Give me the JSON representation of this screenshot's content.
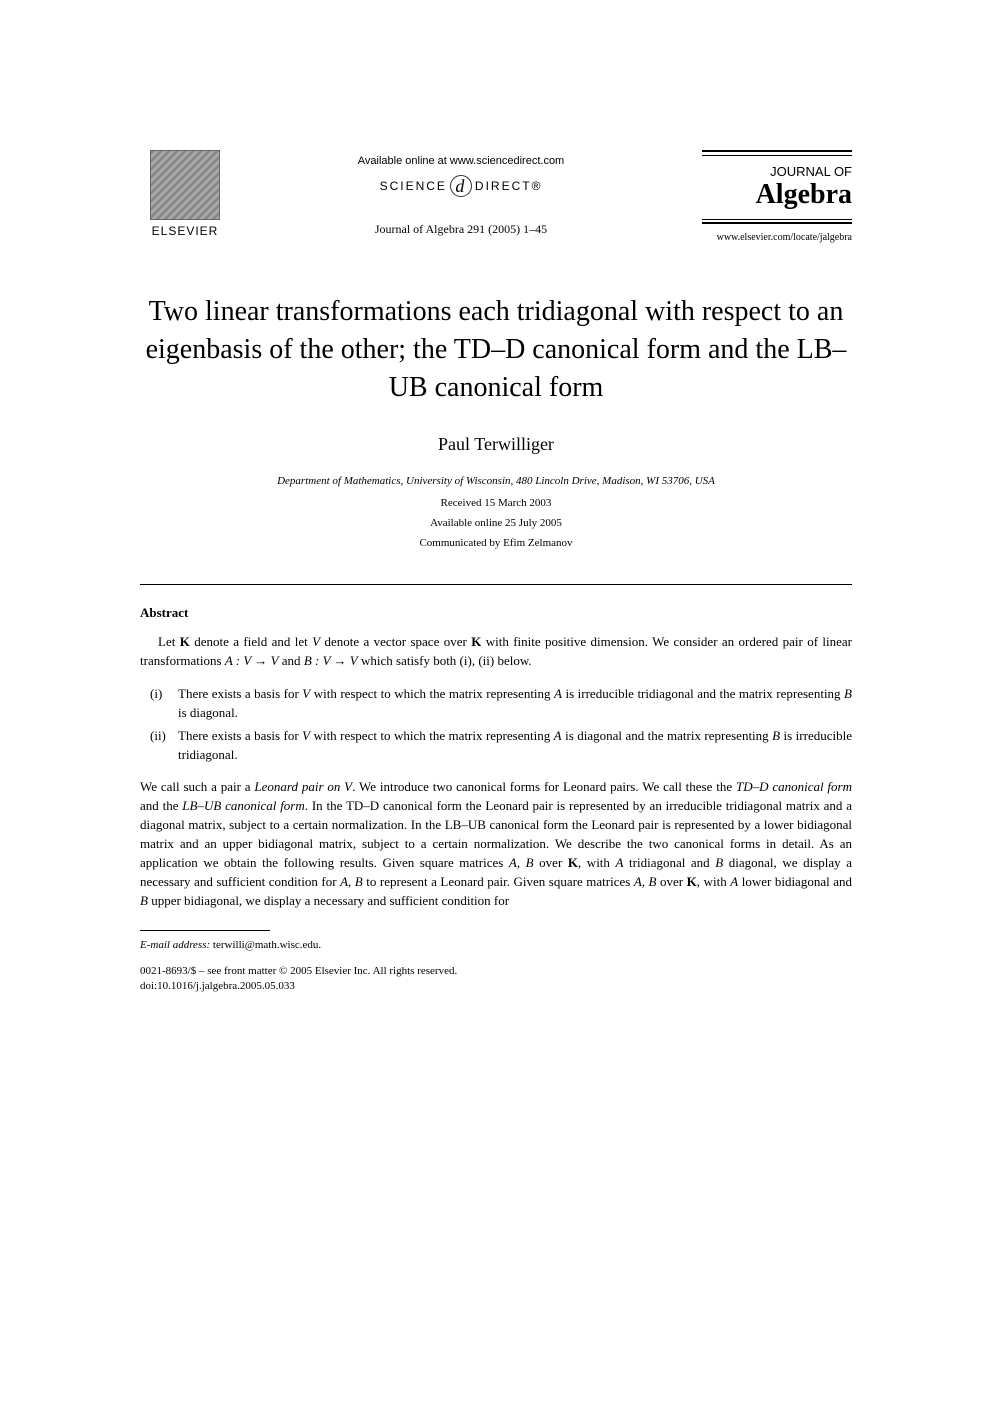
{
  "header": {
    "elsevier_label": "ELSEVIER",
    "available_online": "Available online at www.sciencedirect.com",
    "science_label_pre": "SCIENCE",
    "science_label_post": "DIRECT®",
    "journal_ref": "Journal of Algebra 291 (2005) 1–45",
    "journal_of": "JOURNAL OF",
    "algebra": "Algebra",
    "journal_url": "www.elsevier.com/locate/jalgebra"
  },
  "title": "Two linear transformations each tridiagonal with respect to an eigenbasis of the other; the TD–D canonical form and the LB–UB canonical form",
  "author": "Paul Terwilliger",
  "affiliation": "Department of Mathematics, University of Wisconsin, 480 Lincoln Drive, Madison, WI 53706, USA",
  "received": "Received 15 March 2003",
  "available_date": "Available online 25 July 2005",
  "communicated": "Communicated by Efim Zelmanov",
  "abstract": {
    "heading": "Abstract",
    "para1_pre": "Let ",
    "para1_k1": "K",
    "para1_mid1": " denote a field and let ",
    "para1_v": "V",
    "para1_mid2": " denote a vector space over ",
    "para1_k2": "K",
    "para1_mid3": " with finite positive dimension. We consider an ordered pair of linear transformations ",
    "para1_a": "A : V → V",
    "para1_and": " and ",
    "para1_b": "B : V → V",
    "para1_end": " which satisfy both (i), (ii) below.",
    "item1_marker": "(i)",
    "item1_pre": "There exists a basis for ",
    "item1_v": "V",
    "item1_mid1": " with respect to which the matrix representing ",
    "item1_a": "A",
    "item1_mid2": " is irreducible tridiagonal and the matrix representing ",
    "item1_b": "B",
    "item1_end": " is diagonal.",
    "item2_marker": "(ii)",
    "item2_pre": "There exists a basis for ",
    "item2_v": "V",
    "item2_mid1": " with respect to which the matrix representing ",
    "item2_a": "A",
    "item2_mid2": " is diagonal and the matrix representing ",
    "item2_b": "B",
    "item2_end": " is irreducible tridiagonal.",
    "para2_pre": "We call such a pair a ",
    "para2_lp": "Leonard pair on V",
    "para2_mid1": ". We introduce two canonical forms for Leonard pairs. We call these the ",
    "para2_tdd": "TD–D canonical form",
    "para2_mid2": " and the ",
    "para2_lbub": "LB–UB canonical form",
    "para2_mid3": ". In the TD–D canonical form the Leonard pair is represented by an irreducible tridiagonal matrix and a diagonal matrix, subject to a certain normalization. In the LB–UB canonical form the Leonard pair is represented by a lower bidiagonal matrix and an upper bidiagonal matrix, subject to a certain normalization. We describe the two canonical forms in detail. As an application we obtain the following results. Given square matrices ",
    "para2_ab1": "A, B",
    "para2_over1": " over ",
    "para2_k1": "K",
    "para2_mid4": ", with ",
    "para2_a1": "A",
    "para2_mid5": " tridiagonal and ",
    "para2_b1": "B",
    "para2_mid6": " diagonal, we display a necessary and sufficient condition for ",
    "para2_ab2": "A, B",
    "para2_mid7": " to represent a Leonard pair. Given square matrices ",
    "para2_ab3": "A, B",
    "para2_over2": " over ",
    "para2_k2": "K",
    "para2_mid8": ", with ",
    "para2_a2": "A",
    "para2_mid9": " lower bidiagonal and ",
    "para2_b2": "B",
    "para2_end": " upper bidiagonal, we display a necessary and sufficient condition for"
  },
  "footer": {
    "email_label": "E-mail address:",
    "email": " terwilli@math.wisc.edu.",
    "copyright": "0021-8693/$ – see front matter © 2005 Elsevier Inc. All rights reserved.",
    "doi": "doi:10.1016/j.jalgebra.2005.05.033"
  },
  "colors": {
    "text": "#000000",
    "background": "#ffffff",
    "line": "#000000"
  },
  "typography": {
    "title_fontsize": 28,
    "author_fontsize": 18,
    "body_fontsize": 13,
    "small_fontsize": 11,
    "font_family": "Times New Roman"
  }
}
